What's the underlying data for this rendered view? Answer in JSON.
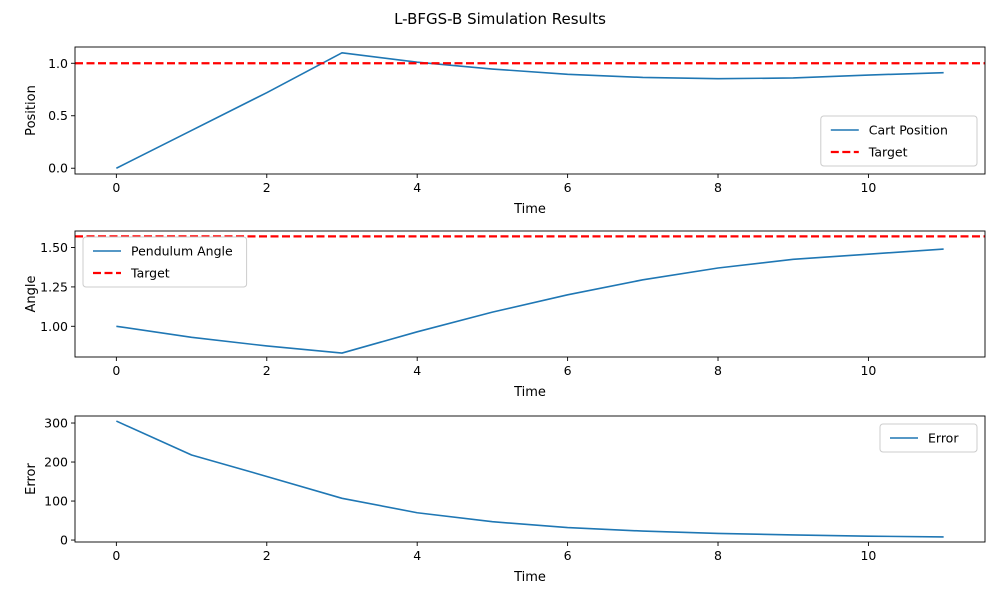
{
  "figure_title": "L-BFGS-B Simulation Results",
  "chart_data": [
    {
      "type": "line",
      "xlabel": "Time",
      "ylabel": "Position",
      "xlim": [
        -0.55,
        11.55
      ],
      "ylim": [
        -0.055,
        1.155
      ],
      "xticks": [
        0,
        2,
        4,
        6,
        8,
        10
      ],
      "yticks": [
        0.0,
        0.5,
        1.0
      ],
      "ytick_labels": [
        "0.0",
        "0.5",
        "1.0"
      ],
      "legend_position": "lower-right",
      "series": [
        {
          "name": "Cart Position",
          "color": "#1f77b4",
          "style": "solid",
          "x": [
            0,
            1,
            2,
            3,
            4,
            5,
            6,
            7,
            8,
            9,
            10,
            11
          ],
          "values": [
            0.0,
            0.36,
            0.72,
            1.1,
            1.01,
            0.945,
            0.895,
            0.865,
            0.853,
            0.86,
            0.888,
            0.91
          ]
        },
        {
          "name": "Target",
          "color": "#ff0000",
          "style": "dashed",
          "hline": 1.0
        }
      ]
    },
    {
      "type": "line",
      "xlabel": "Time",
      "ylabel": "Angle",
      "xlim": [
        -0.55,
        11.55
      ],
      "ylim": [
        0.805,
        1.605
      ],
      "xticks": [
        0,
        2,
        4,
        6,
        8,
        10
      ],
      "yticks": [
        1.0,
        1.25,
        1.5
      ],
      "ytick_labels": [
        "1.00",
        "1.25",
        "1.50"
      ],
      "legend_position": "upper-left",
      "series": [
        {
          "name": "Pendulum Angle",
          "color": "#1f77b4",
          "style": "solid",
          "x": [
            0,
            1,
            2,
            3,
            4,
            5,
            6,
            7,
            8,
            9,
            10,
            11
          ],
          "values": [
            1.0,
            0.93,
            0.875,
            0.83,
            0.965,
            1.09,
            1.2,
            1.295,
            1.37,
            1.425,
            1.458,
            1.49
          ]
        },
        {
          "name": "Target",
          "color": "#ff0000",
          "style": "dashed",
          "hline": 1.5708
        }
      ]
    },
    {
      "type": "line",
      "xlabel": "Time",
      "ylabel": "Error",
      "xlim": [
        -0.55,
        11.55
      ],
      "ylim": [
        -5,
        318
      ],
      "xticks": [
        0,
        2,
        4,
        6,
        8,
        10
      ],
      "yticks": [
        0,
        100,
        200,
        300
      ],
      "ytick_labels": [
        "0",
        "100",
        "200",
        "300"
      ],
      "legend_position": "upper-right",
      "series": [
        {
          "name": "Error",
          "color": "#1f77b4",
          "style": "solid",
          "x": [
            0,
            1,
            2,
            3,
            4,
            5,
            6,
            7,
            8,
            9,
            10,
            11
          ],
          "values": [
            305,
            218,
            163,
            107,
            70,
            47,
            32,
            23,
            17,
            13,
            10,
            8
          ]
        }
      ]
    }
  ]
}
